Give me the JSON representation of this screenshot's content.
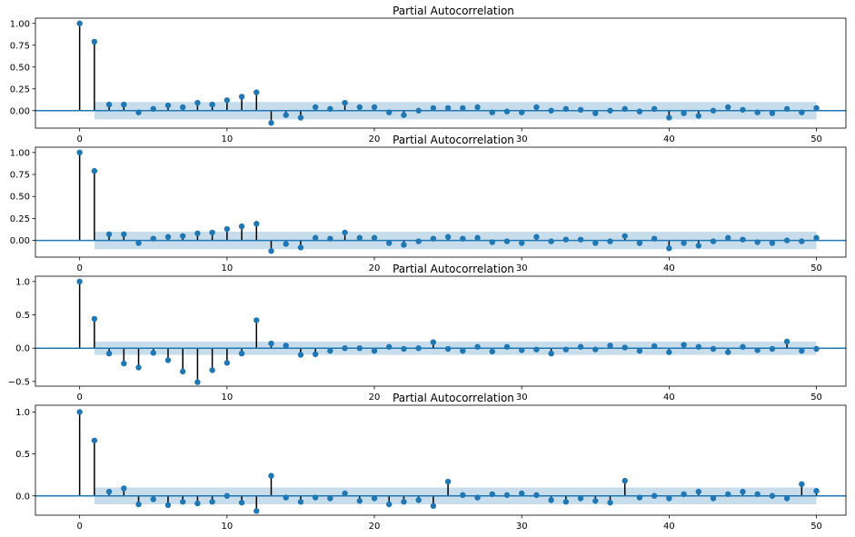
{
  "figure": {
    "colors": {
      "marker": "#1f77b4",
      "stem": "#000000",
      "baseline": "#1f77b4",
      "confidence_band": "#1f77b4",
      "axes": "#000000",
      "background": "#ffffff"
    }
  },
  "chart_data": [
    {
      "type": "stem",
      "title": "Partial Autocorrelation",
      "xlim": [
        -3,
        52
      ],
      "ylim": [
        -0.2,
        1.06
      ],
      "xticks": [
        0,
        10,
        20,
        30,
        40,
        50
      ],
      "xtick_labels": [
        "0",
        "10",
        "20",
        "30",
        "40",
        "50"
      ],
      "yticks": [
        0.0,
        0.25,
        0.5,
        0.75,
        1.0
      ],
      "ytick_labels": [
        "0.00",
        "0.25",
        "0.50",
        "0.75",
        "1.00"
      ],
      "confidence_interval": [
        -0.1,
        0.1
      ],
      "lags": [
        0,
        1,
        2,
        3,
        4,
        5,
        6,
        7,
        8,
        9,
        10,
        11,
        12,
        13,
        14,
        15,
        16,
        17,
        18,
        19,
        20,
        21,
        22,
        23,
        24,
        25,
        26,
        27,
        28,
        29,
        30,
        31,
        32,
        33,
        34,
        35,
        36,
        37,
        38,
        39,
        40,
        41,
        42,
        43,
        44,
        45,
        46,
        47,
        48,
        49,
        50
      ],
      "values": [
        1.0,
        0.79,
        0.07,
        0.07,
        -0.02,
        0.02,
        0.06,
        0.04,
        0.09,
        0.07,
        0.12,
        0.16,
        0.21,
        -0.14,
        -0.05,
        -0.08,
        0.04,
        0.02,
        0.09,
        0.04,
        0.04,
        -0.02,
        -0.05,
        0.0,
        0.03,
        0.03,
        0.03,
        0.04,
        -0.02,
        -0.01,
        -0.02,
        0.04,
        0.0,
        0.02,
        0.01,
        -0.03,
        0.0,
        0.02,
        -0.01,
        0.02,
        -0.08,
        -0.03,
        -0.06,
        0.0,
        0.04,
        0.01,
        -0.02,
        -0.03,
        0.02,
        -0.02,
        0.03
      ]
    },
    {
      "type": "stem",
      "title": "Partial Autocorrelation",
      "xlim": [
        -3,
        52
      ],
      "ylim": [
        -0.19,
        1.06
      ],
      "xticks": [
        0,
        10,
        20,
        30,
        40,
        50
      ],
      "xtick_labels": [
        "0",
        "10",
        "20",
        "30",
        "40",
        "50"
      ],
      "yticks": [
        0.0,
        0.25,
        0.5,
        0.75,
        1.0
      ],
      "ytick_labels": [
        "0.00",
        "0.25",
        "0.50",
        "0.75",
        "1.00"
      ],
      "confidence_interval": [
        -0.1,
        0.1
      ],
      "lags": [
        0,
        1,
        2,
        3,
        4,
        5,
        6,
        7,
        8,
        9,
        10,
        11,
        12,
        13,
        14,
        15,
        16,
        17,
        18,
        19,
        20,
        21,
        22,
        23,
        24,
        25,
        26,
        27,
        28,
        29,
        30,
        31,
        32,
        33,
        34,
        35,
        36,
        37,
        38,
        39,
        40,
        41,
        42,
        43,
        44,
        45,
        46,
        47,
        48,
        49,
        50
      ],
      "values": [
        1.0,
        0.79,
        0.07,
        0.07,
        -0.03,
        0.02,
        0.04,
        0.05,
        0.08,
        0.09,
        0.13,
        0.16,
        0.19,
        -0.12,
        -0.04,
        -0.08,
        0.03,
        0.02,
        0.09,
        0.03,
        0.03,
        -0.03,
        -0.05,
        -0.01,
        0.02,
        0.04,
        0.02,
        0.03,
        -0.02,
        -0.01,
        -0.03,
        0.04,
        -0.01,
        0.01,
        0.01,
        -0.03,
        -0.01,
        0.05,
        -0.03,
        0.02,
        -0.09,
        -0.03,
        -0.06,
        -0.01,
        0.03,
        0.01,
        -0.02,
        -0.03,
        0.0,
        -0.01,
        0.03
      ]
    },
    {
      "type": "stem",
      "title": "Partial Autocorrelation",
      "xlim": [
        -3,
        52
      ],
      "ylim": [
        -0.57,
        1.08
      ],
      "xticks": [
        0,
        10,
        20,
        30,
        40,
        50
      ],
      "xtick_labels": [
        "0",
        "10",
        "20",
        "30",
        "40",
        "50"
      ],
      "yticks": [
        -0.5,
        0.0,
        0.5,
        1.0
      ],
      "ytick_labels": [
        "−0.5",
        "0.0",
        "0.5",
        "1.0"
      ],
      "confidence_interval": [
        -0.1,
        0.1
      ],
      "lags": [
        0,
        1,
        2,
        3,
        4,
        5,
        6,
        7,
        8,
        9,
        10,
        11,
        12,
        13,
        14,
        15,
        16,
        17,
        18,
        19,
        20,
        21,
        22,
        23,
        24,
        25,
        26,
        27,
        28,
        29,
        30,
        31,
        32,
        33,
        34,
        35,
        36,
        37,
        38,
        39,
        40,
        41,
        42,
        43,
        44,
        45,
        46,
        47,
        48,
        49,
        50
      ],
      "values": [
        1.0,
        0.44,
        -0.08,
        -0.23,
        -0.29,
        -0.07,
        -0.18,
        -0.35,
        -0.51,
        -0.33,
        -0.22,
        -0.08,
        0.42,
        0.07,
        0.04,
        -0.1,
        -0.09,
        -0.04,
        0.0,
        0.0,
        -0.04,
        0.02,
        -0.01,
        0.0,
        0.09,
        -0.01,
        -0.04,
        0.02,
        -0.05,
        0.02,
        -0.03,
        -0.02,
        -0.08,
        -0.02,
        0.02,
        -0.02,
        0.04,
        0.01,
        -0.04,
        0.03,
        -0.06,
        0.05,
        0.02,
        -0.01,
        -0.06,
        0.02,
        -0.03,
        -0.01,
        0.1,
        -0.04,
        -0.01
      ]
    },
    {
      "type": "stem",
      "title": "Partial Autocorrelation",
      "xlim": [
        -3,
        52
      ],
      "ylim": [
        -0.23,
        1.08
      ],
      "xticks": [
        0,
        10,
        20,
        30,
        40,
        50
      ],
      "xtick_labels": [
        "0",
        "10",
        "20",
        "30",
        "40",
        "50"
      ],
      "yticks": [
        0.0,
        0.5,
        1.0
      ],
      "ytick_labels": [
        "0.0",
        "0.5",
        "1.0"
      ],
      "confidence_interval": [
        -0.1,
        0.1
      ],
      "lags": [
        0,
        1,
        2,
        3,
        4,
        5,
        6,
        7,
        8,
        9,
        10,
        11,
        12,
        13,
        14,
        15,
        16,
        17,
        18,
        19,
        20,
        21,
        22,
        23,
        24,
        25,
        26,
        27,
        28,
        29,
        30,
        31,
        32,
        33,
        34,
        35,
        36,
        37,
        38,
        39,
        40,
        41,
        42,
        43,
        44,
        45,
        46,
        47,
        48,
        49,
        50
      ],
      "values": [
        1.0,
        0.66,
        0.05,
        0.09,
        -0.1,
        -0.04,
        -0.11,
        -0.07,
        -0.09,
        -0.07,
        0.0,
        -0.08,
        -0.18,
        0.24,
        -0.02,
        -0.07,
        -0.02,
        -0.03,
        0.03,
        -0.06,
        -0.03,
        -0.1,
        -0.07,
        -0.05,
        -0.12,
        0.17,
        0.01,
        -0.02,
        0.02,
        0.01,
        0.03,
        0.01,
        -0.05,
        -0.07,
        -0.03,
        -0.06,
        -0.08,
        0.18,
        -0.02,
        0.0,
        -0.03,
        0.02,
        0.05,
        -0.03,
        0.02,
        0.05,
        0.02,
        0.0,
        -0.03,
        0.14,
        0.06
      ]
    }
  ]
}
